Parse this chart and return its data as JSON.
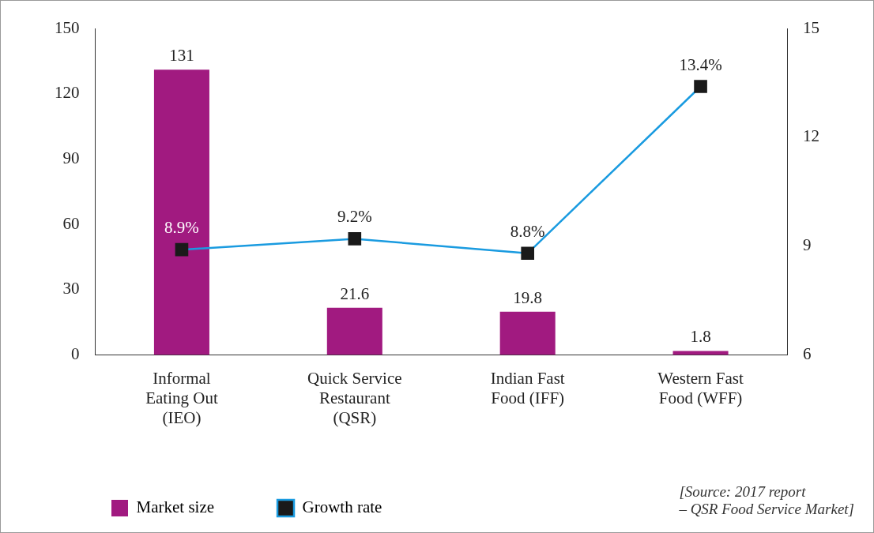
{
  "chart_data": {
    "type": "bar",
    "categories": [
      "Informal\nEating Out\n(IEO)",
      "Quick Service\nRestaurant\n(QSR)",
      "Indian Fast\nFood (IFF)",
      "Western Fast\nFood (WFF)"
    ],
    "series": [
      {
        "name": "Market size",
        "color": "#a11a80",
        "values": [
          131,
          21.6,
          19.8,
          1.8
        ],
        "value_labels": [
          "131",
          "21.6",
          "19.8",
          "1.8"
        ]
      },
      {
        "name": "Growth rate",
        "type": "line",
        "axis": "y2",
        "color": "#1a9be0",
        "values": [
          8.9,
          9.2,
          8.8,
          13.4
        ],
        "value_labels": [
          "8.9%",
          "9.2%",
          "8.8%",
          "13.4%"
        ]
      }
    ],
    "ylim": [
      0,
      150
    ],
    "yticks": [
      0,
      30,
      60,
      90,
      120,
      150
    ],
    "y2lim": [
      6,
      15
    ],
    "y2ticks": [
      6,
      9,
      12,
      15
    ],
    "grid": false,
    "legend": "bottom left",
    "marker": "square",
    "line_style": "solid",
    "annotations": [
      "[Source: 2017 report\n– QSR Food Service Market]"
    ]
  }
}
